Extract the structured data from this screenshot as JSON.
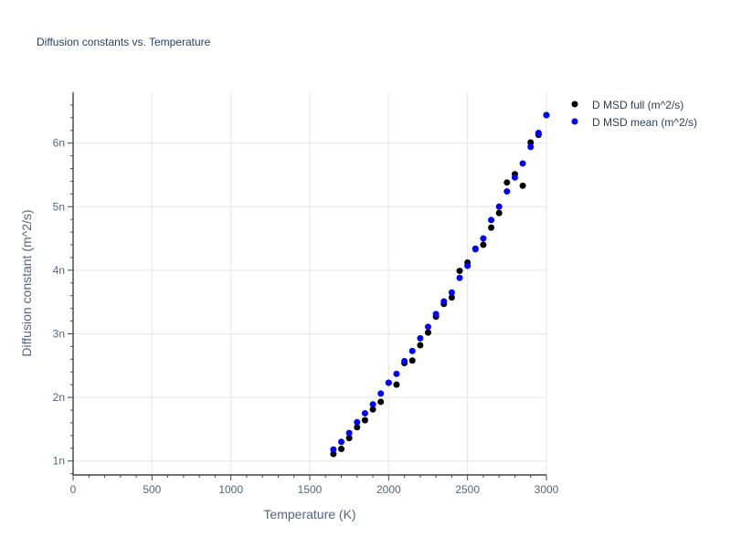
{
  "chart_data": {
    "type": "scatter",
    "title": "Diffusion constants vs. Temperature",
    "xlabel": "Temperature (K)",
    "ylabel": "Diffusion constant (m^2/s)",
    "xlim": [
      0,
      3000
    ],
    "ylim": [
      0.78,
      6.8
    ],
    "x_ticks": [
      0,
      500,
      1000,
      1500,
      2000,
      2500,
      3000
    ],
    "x_tick_labels": [
      "0",
      "500",
      "1000",
      "1500",
      "2000",
      "2500",
      "3000"
    ],
    "y_ticks": [
      1,
      2,
      3,
      4,
      5,
      6
    ],
    "y_tick_labels": [
      "1n",
      "2n",
      "3n",
      "4n",
      "5n",
      "6n"
    ],
    "grid": true,
    "legend_position": "top-right",
    "series": [
      {
        "name": "D MSD full (m^2/s)",
        "color": "#000000",
        "x": [
          1650,
          1700,
          1750,
          1800,
          1850,
          1900,
          1950,
          2000,
          2050,
          2100,
          2150,
          2200,
          2250,
          2300,
          2350,
          2400,
          2450,
          2500,
          2550,
          2600,
          2650,
          2700,
          2750,
          2800,
          2850,
          2900,
          2950,
          3000
        ],
        "y": [
          1.11,
          1.19,
          1.36,
          1.53,
          1.64,
          1.81,
          1.93,
          2.23,
          2.2,
          2.54,
          2.58,
          2.82,
          3.02,
          3.27,
          3.47,
          3.57,
          3.99,
          4.12,
          4.33,
          4.4,
          4.67,
          4.9,
          5.38,
          5.51,
          5.33,
          6.01,
          6.13,
          6.44
        ]
      },
      {
        "name": "D MSD mean (m^2/s)",
        "color": "#0000ff",
        "x": [
          1650,
          1700,
          1750,
          1800,
          1850,
          1900,
          1950,
          2000,
          2050,
          2100,
          2150,
          2200,
          2250,
          2300,
          2350,
          2400,
          2450,
          2500,
          2550,
          2600,
          2650,
          2700,
          2750,
          2800,
          2850,
          2900,
          2950,
          3000
        ],
        "y": [
          1.18,
          1.3,
          1.44,
          1.61,
          1.75,
          1.89,
          2.06,
          2.23,
          2.37,
          2.57,
          2.73,
          2.93,
          3.11,
          3.31,
          3.51,
          3.65,
          3.88,
          4.07,
          4.34,
          4.5,
          4.79,
          5.0,
          5.24,
          5.46,
          5.68,
          5.94,
          6.16,
          6.44
        ]
      }
    ]
  }
}
